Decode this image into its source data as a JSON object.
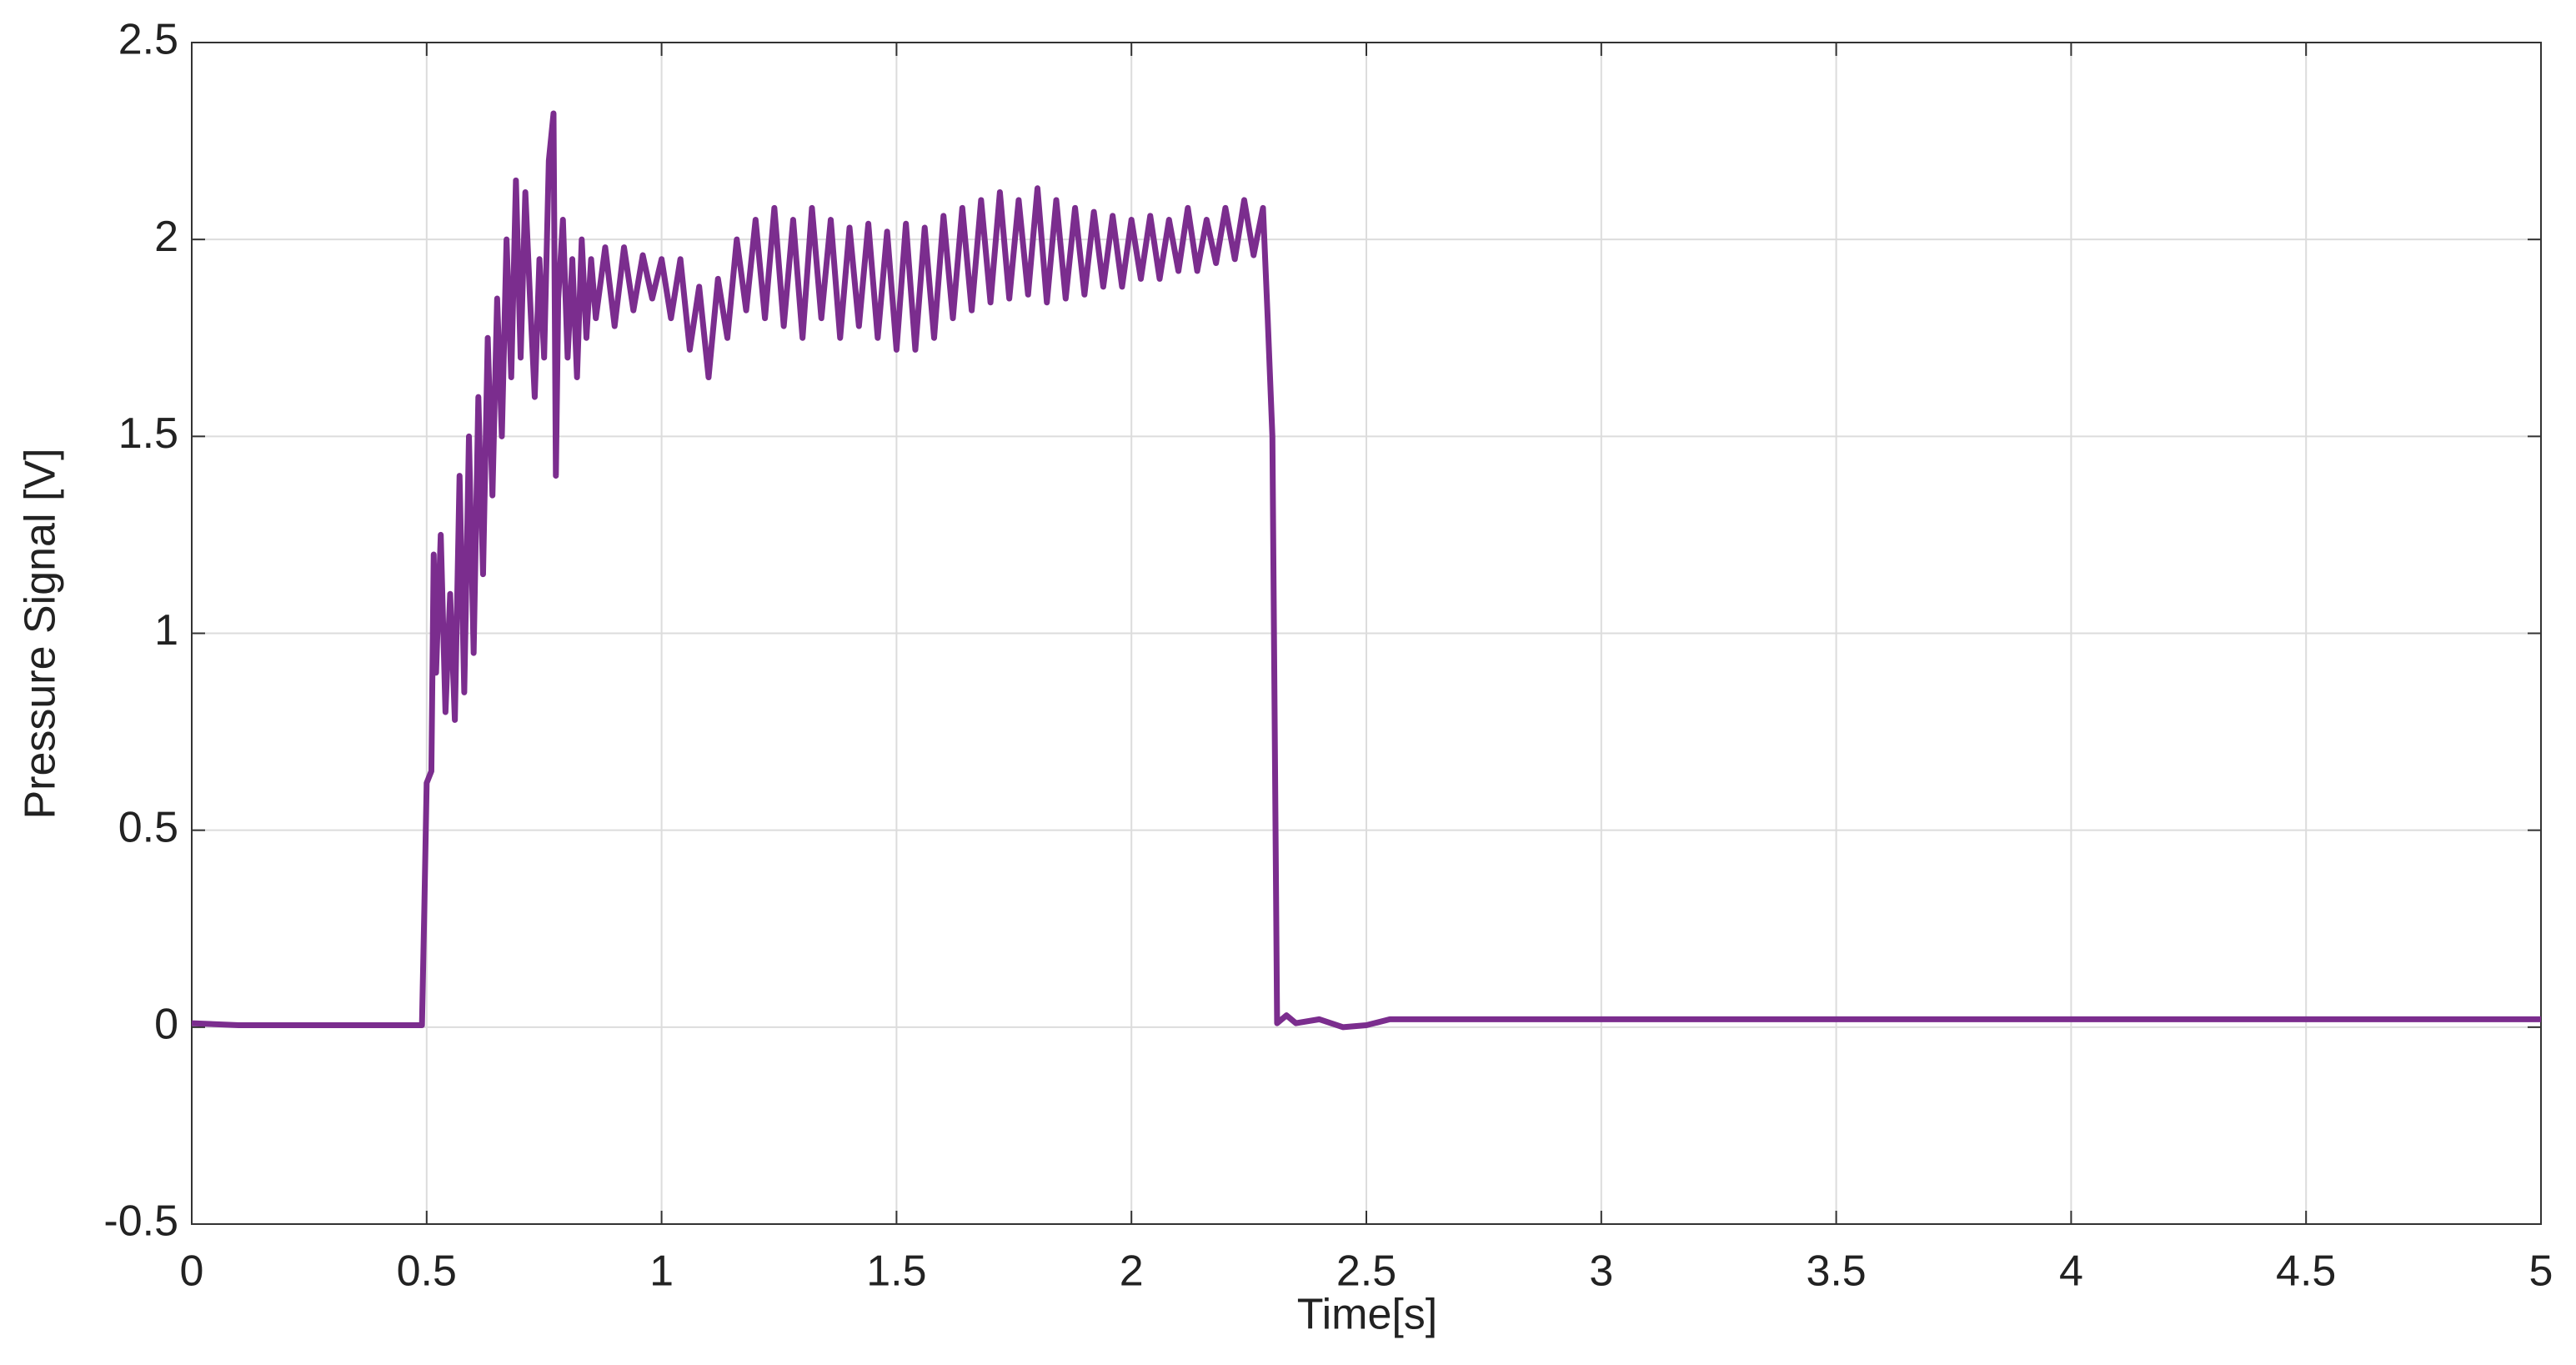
{
  "chart_data": {
    "type": "line",
    "xlabel": "Time[s]",
    "ylabel": "Pressure Signal [V]",
    "x": [
      0,
      0.1,
      0.2,
      0.3,
      0.4,
      0.49,
      0.495,
      0.5,
      0.51,
      0.515,
      0.52,
      0.53,
      0.54,
      0.55,
      0.56,
      0.57,
      0.58,
      0.59,
      0.6,
      0.61,
      0.62,
      0.63,
      0.64,
      0.65,
      0.66,
      0.67,
      0.68,
      0.69,
      0.7,
      0.71,
      0.72,
      0.73,
      0.74,
      0.75,
      0.76,
      0.77,
      0.775,
      0.78,
      0.79,
      0.8,
      0.81,
      0.82,
      0.83,
      0.84,
      0.85,
      0.86,
      0.88,
      0.9,
      0.92,
      0.94,
      0.96,
      0.98,
      1.0,
      1.02,
      1.04,
      1.06,
      1.08,
      1.1,
      1.12,
      1.14,
      1.16,
      1.18,
      1.2,
      1.22,
      1.24,
      1.26,
      1.28,
      1.3,
      1.32,
      1.34,
      1.36,
      1.38,
      1.4,
      1.42,
      1.44,
      1.46,
      1.48,
      1.5,
      1.52,
      1.54,
      1.56,
      1.58,
      1.6,
      1.62,
      1.64,
      1.66,
      1.68,
      1.7,
      1.72,
      1.74,
      1.76,
      1.78,
      1.8,
      1.82,
      1.84,
      1.86,
      1.88,
      1.9,
      1.92,
      1.94,
      1.96,
      1.98,
      2.0,
      2.02,
      2.04,
      2.06,
      2.08,
      2.1,
      2.12,
      2.14,
      2.16,
      2.18,
      2.2,
      2.22,
      2.24,
      2.26,
      2.28,
      2.29,
      2.3,
      2.31,
      2.33,
      2.35,
      2.4,
      2.45,
      2.5,
      2.55,
      2.6,
      3,
      3.5,
      4,
      4.5,
      5
    ],
    "series": [
      {
        "name": "Pressure",
        "color": "#7b2d8e",
        "values": [
          0.01,
          0.005,
          0.005,
          0.005,
          0.005,
          0.005,
          0.3,
          0.62,
          0.65,
          1.2,
          0.9,
          1.25,
          0.8,
          1.1,
          0.78,
          1.4,
          0.85,
          1.5,
          0.95,
          1.6,
          1.15,
          1.75,
          1.35,
          1.85,
          1.5,
          2.0,
          1.65,
          2.15,
          1.7,
          2.12,
          1.85,
          1.6,
          1.95,
          1.7,
          2.2,
          2.32,
          1.4,
          1.85,
          2.05,
          1.7,
          1.95,
          1.65,
          2.0,
          1.75,
          1.95,
          1.8,
          1.98,
          1.78,
          1.98,
          1.82,
          1.96,
          1.85,
          1.95,
          1.8,
          1.95,
          1.72,
          1.88,
          1.65,
          1.9,
          1.75,
          2.0,
          1.82,
          2.05,
          1.8,
          2.08,
          1.78,
          2.05,
          1.75,
          2.08,
          1.8,
          2.05,
          1.75,
          2.03,
          1.78,
          2.04,
          1.75,
          2.02,
          1.72,
          2.04,
          1.72,
          2.03,
          1.75,
          2.06,
          1.8,
          2.08,
          1.82,
          2.1,
          1.84,
          2.12,
          1.85,
          2.1,
          1.86,
          2.13,
          1.84,
          2.1,
          1.85,
          2.08,
          1.86,
          2.07,
          1.88,
          2.06,
          1.88,
          2.05,
          1.9,
          2.06,
          1.9,
          2.05,
          1.92,
          2.08,
          1.92,
          2.05,
          1.94,
          2.08,
          1.95,
          2.1,
          1.96,
          2.08,
          1.8,
          1.5,
          0.01,
          0.03,
          0.01,
          0.02,
          0.0,
          0.005,
          0.02,
          0.02,
          0.02,
          0.02,
          0.02,
          0.02,
          0.02
        ]
      }
    ],
    "xlim": [
      0,
      5
    ],
    "xticks": [
      0,
      0.5,
      1,
      1.5,
      2,
      2.5,
      3,
      3.5,
      4,
      4.5,
      5
    ],
    "ylim": [
      -0.5,
      2.5
    ],
    "yticks": [
      -0.5,
      0,
      0.5,
      1,
      1.5,
      2,
      2.5
    ],
    "grid": true
  }
}
